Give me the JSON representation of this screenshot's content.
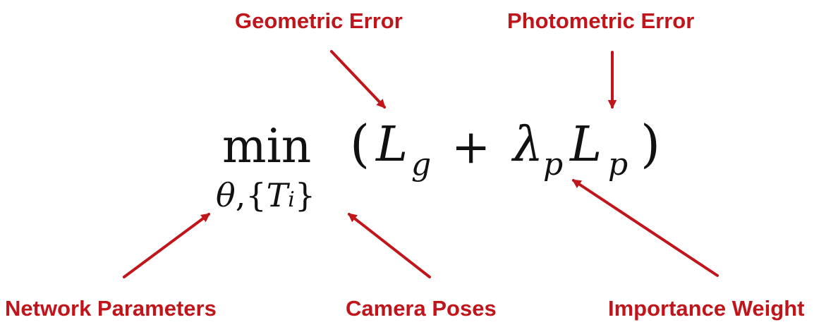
{
  "labels": {
    "geometric_error": "Geometric Error",
    "photometric_error": "Photometric Error",
    "network_parameters": "Network Parameters",
    "camera_poses": "Camera Poses",
    "importance_weight": "Importance Weight"
  },
  "equation": {
    "operator": "min",
    "open_paren": "(",
    "L": "L",
    "sub_g": "g",
    "plus": "+",
    "lambda": "λ",
    "sub_p": "p",
    "close_paren": ")",
    "subscript": {
      "theta": "θ",
      "comma": ",",
      "open_brace": "{",
      "T": "T",
      "sub_i": "i",
      "close_brace": "}"
    }
  },
  "colors": {
    "accent": "#c0151b",
    "text": "#111111",
    "background": "#ffffff"
  }
}
